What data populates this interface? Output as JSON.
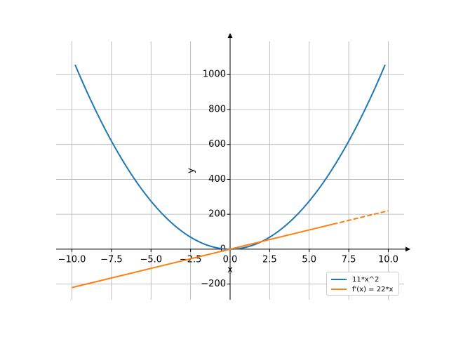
{
  "chart_data": {
    "type": "line",
    "xlabel": "x",
    "ylabel": "y",
    "xlim": [
      -11.0,
      11.0
    ],
    "ylim": [
      -290,
      1190
    ],
    "grid": true,
    "legend_position": "bottom-right",
    "x_ticks": [
      -10.0,
      -7.5,
      -5.0,
      -2.5,
      0.0,
      2.5,
      5.0,
      7.5,
      10.0
    ],
    "x_tick_labels": [
      "−10.0",
      "−7.5",
      "−5.0",
      "−2.5",
      "0.0",
      "2.5",
      "5.0",
      "7.5",
      "10.0"
    ],
    "y_ticks": [
      -200,
      0,
      200,
      400,
      600,
      800,
      1000
    ],
    "y_tick_labels": [
      "−200",
      "0",
      "200",
      "400",
      "600",
      "800",
      "1000"
    ],
    "series": [
      {
        "name": "11*x^2",
        "color": "#1f77b4",
        "style": "solid",
        "x": [
          -9.8,
          -9.0,
          -8.0,
          -7.0,
          -6.0,
          -5.0,
          -4.0,
          -3.0,
          -2.0,
          -1.0,
          0.0,
          1.0,
          2.0,
          3.0,
          4.0,
          5.0,
          6.0,
          7.0,
          8.0,
          9.0,
          9.8
        ],
        "y": [
          1056.44,
          891,
          704,
          539,
          396,
          275,
          176,
          99,
          44,
          11,
          0,
          11,
          44,
          99,
          176,
          275,
          396,
          539,
          704,
          891,
          1056.44
        ]
      },
      {
        "name": "f'(x) = 22*x",
        "color": "#ff7f0e",
        "style": "solid-then-dashed",
        "dash_start_x": 6.5,
        "x": [
          -10.0,
          10.0
        ],
        "y": [
          -220,
          220
        ]
      }
    ]
  }
}
